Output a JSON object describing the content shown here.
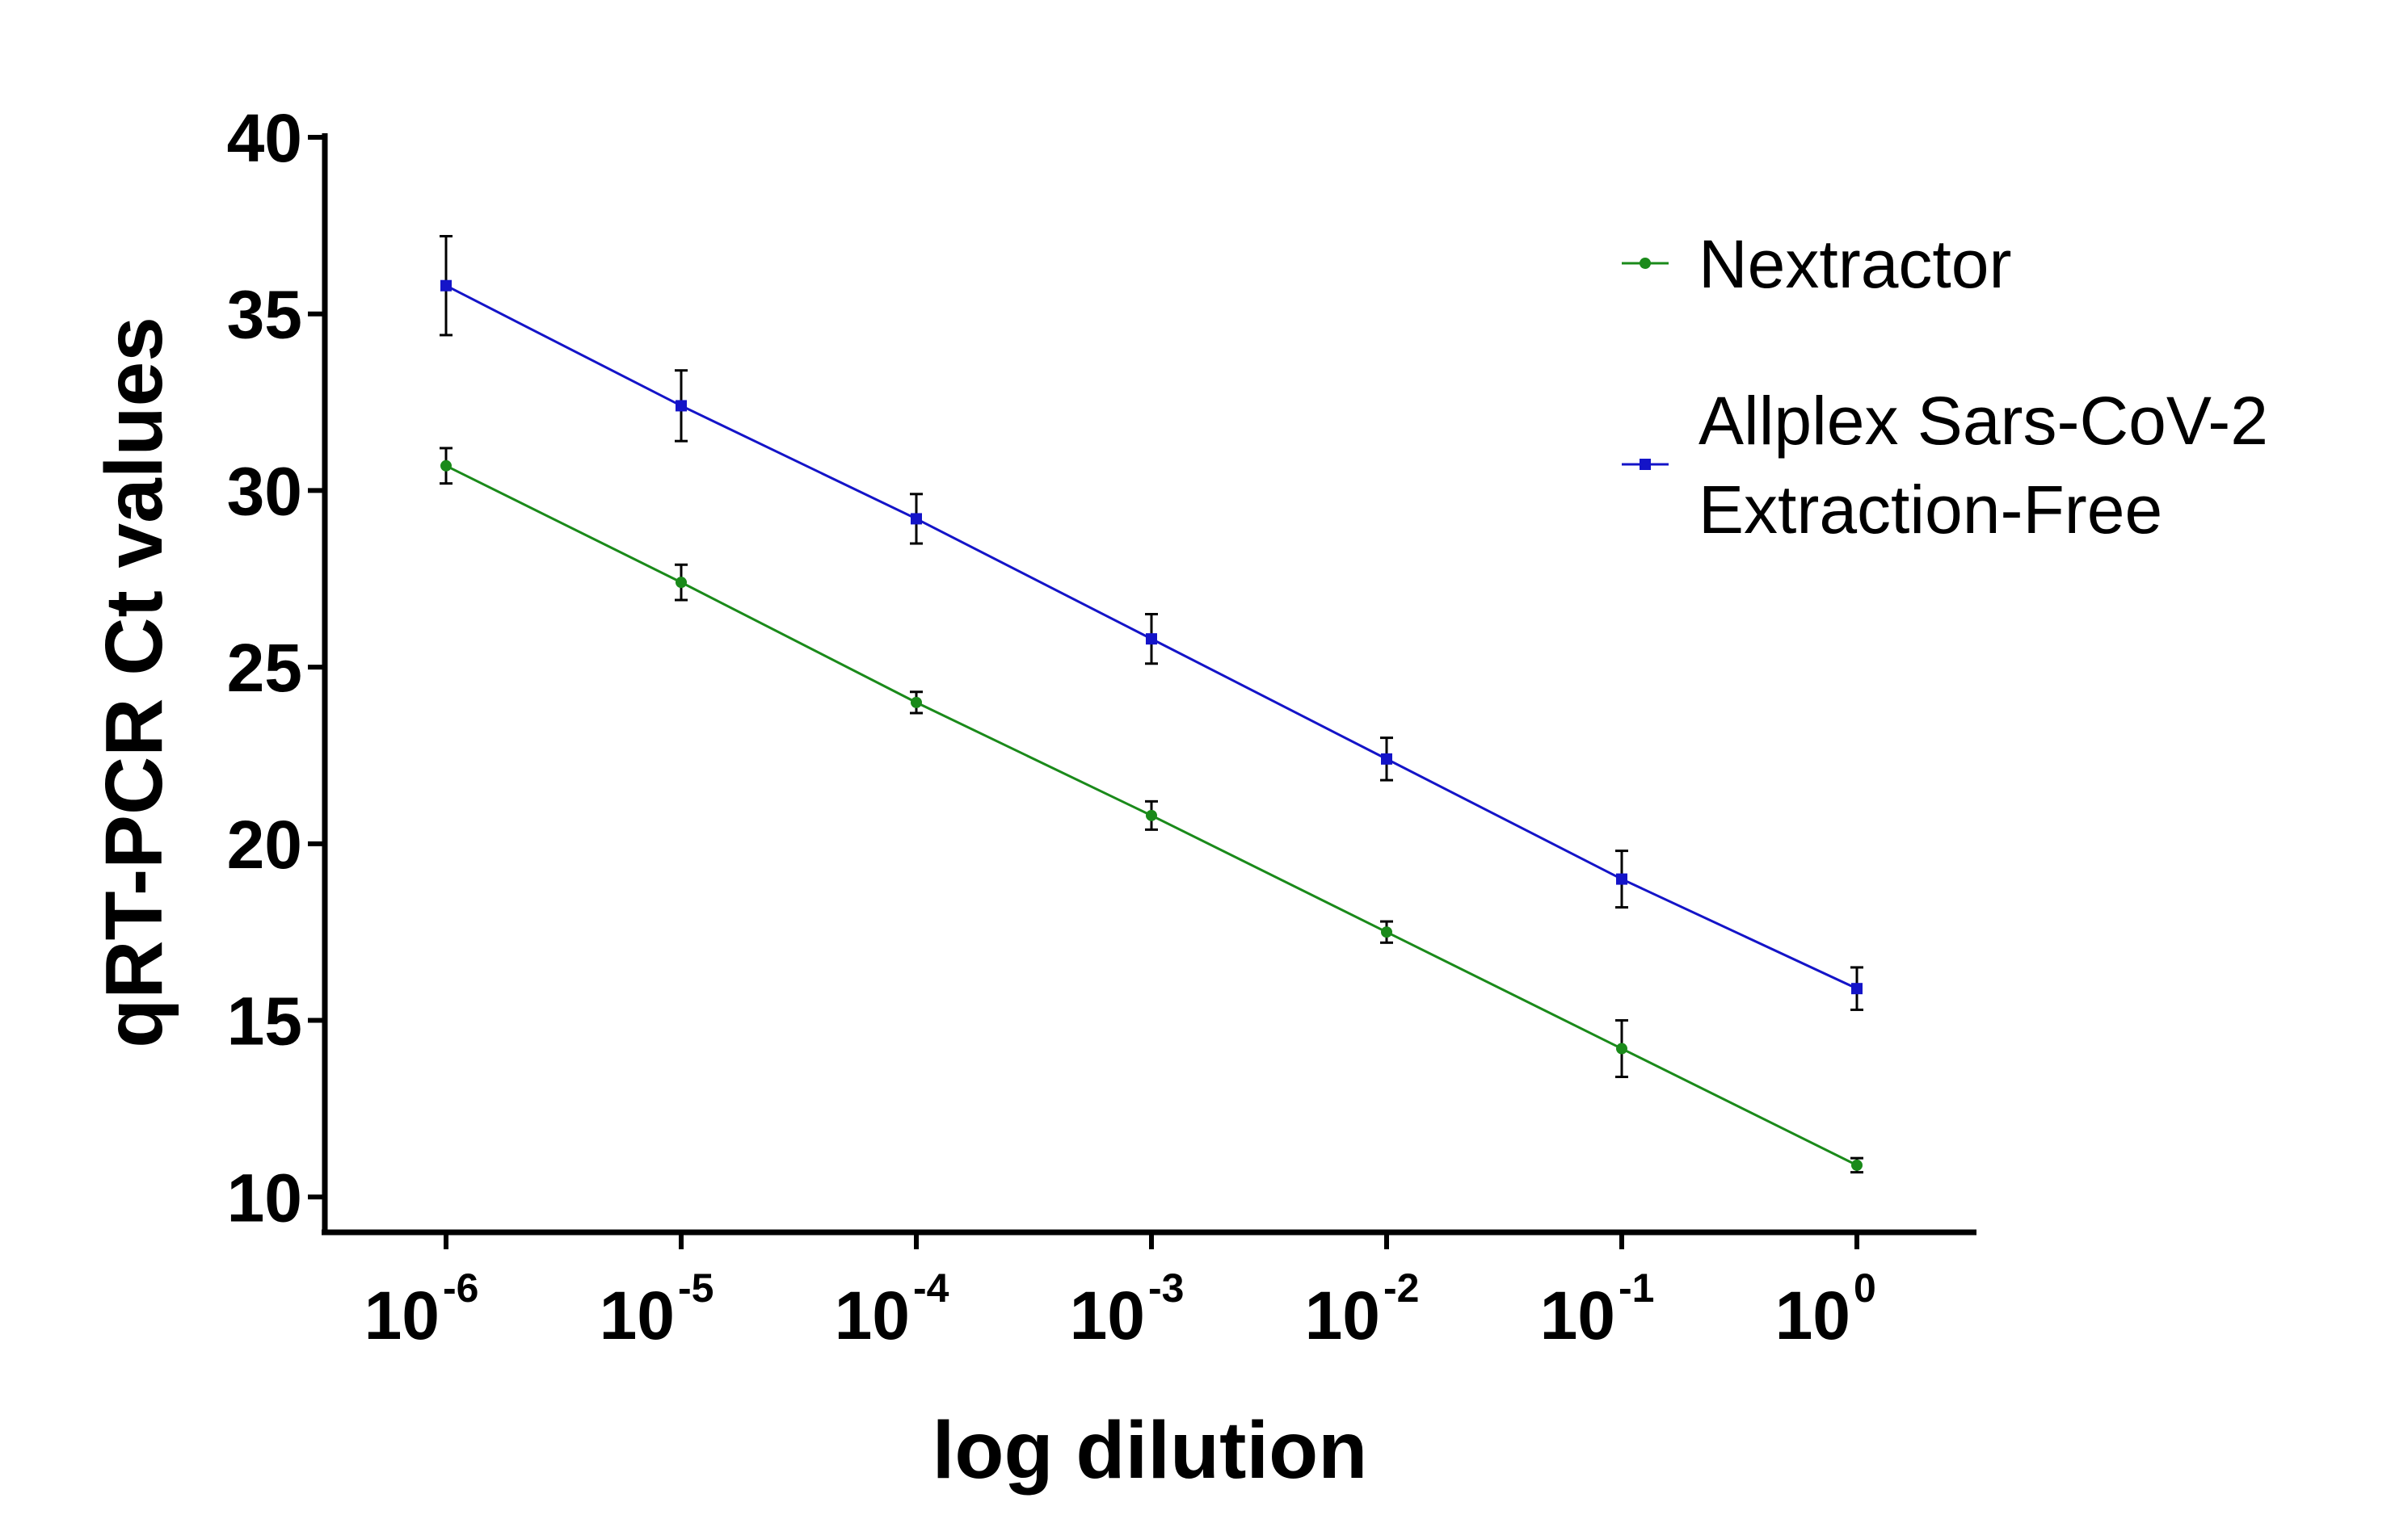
{
  "chart_data": {
    "type": "line",
    "title": "",
    "xlabel": "log dilution",
    "ylabel": "qRT-PCR Ct values",
    "x_categories": [
      {
        "base": "10",
        "exp": "-6"
      },
      {
        "base": "10",
        "exp": "-5"
      },
      {
        "base": "10",
        "exp": "-4"
      },
      {
        "base": "10",
        "exp": "-3"
      },
      {
        "base": "10",
        "exp": "-2"
      },
      {
        "base": "10",
        "exp": "-1"
      },
      {
        "base": "10",
        "exp": "0"
      }
    ],
    "ylim": [
      9,
      40
    ],
    "yticks": [
      10,
      15,
      20,
      25,
      30,
      35,
      40
    ],
    "legend_position": "top-right",
    "series": [
      {
        "name": "Nextractor",
        "color": "#1a8a1a",
        "marker": "circle",
        "values": [
          30.7,
          27.4,
          24.0,
          20.8,
          17.5,
          14.2,
          10.9
        ],
        "errors": [
          0.5,
          0.5,
          0.3,
          0.4,
          0.3,
          0.8,
          0.2
        ]
      },
      {
        "name": "Allplex Sars-CoV-2 Extraction-Free",
        "legend_lines": [
          "Allplex Sars-CoV-2",
          "Extraction-Free"
        ],
        "color": "#1414c8",
        "marker": "square",
        "values": [
          35.8,
          32.4,
          29.2,
          25.8,
          22.4,
          19.0,
          15.9
        ],
        "errors": [
          1.4,
          1.0,
          0.7,
          0.7,
          0.6,
          0.8,
          0.6
        ]
      }
    ]
  }
}
